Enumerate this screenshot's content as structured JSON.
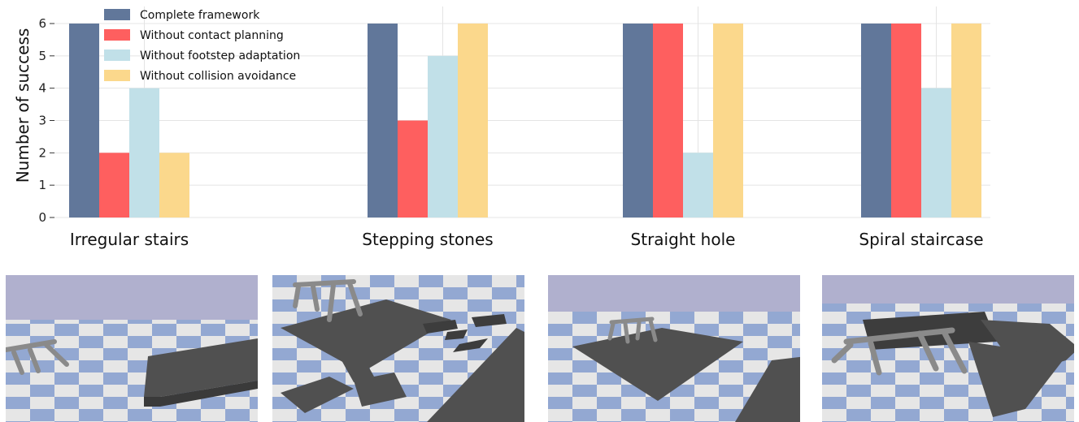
{
  "chart_data": {
    "type": "bar",
    "categories": [
      "Irregular stairs",
      "Stepping stones",
      "Straight hole",
      "Spiral staircase"
    ],
    "series": [
      {
        "name": "Complete framework",
        "color": "#61779a",
        "values": [
          6,
          6,
          6,
          6
        ]
      },
      {
        "name": "Without contact planning",
        "color": "#fe5f5f",
        "values": [
          2,
          3,
          6,
          6
        ]
      },
      {
        "name": "Without footstep adaptation",
        "color": "#c1e0e8",
        "values": [
          4,
          5,
          2,
          4
        ]
      },
      {
        "name": "Without collision avoidance",
        "color": "#fbd88c",
        "values": [
          2,
          6,
          6,
          6
        ]
      }
    ],
    "ylabel": "Number of success",
    "yticks": [
      0,
      1,
      2,
      3,
      4,
      5,
      6
    ],
    "ylim": [
      0,
      6
    ],
    "grid": true,
    "legend_position": "top-left"
  }
}
